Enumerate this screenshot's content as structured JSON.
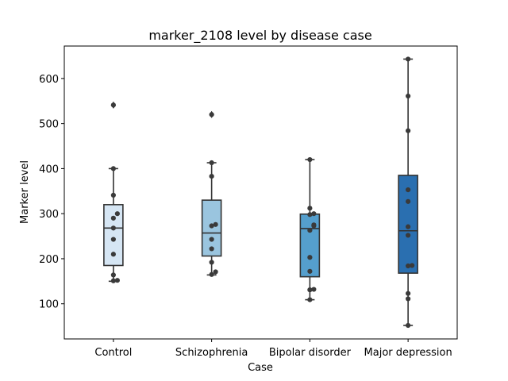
{
  "chart_data": {
    "type": "box",
    "title": "marker_2108 level by disease case",
    "xlabel": "Case",
    "ylabel": "Marker level",
    "categories": [
      "Control",
      "Schizophrenia",
      "Bipolar disorder",
      "Major depression"
    ],
    "ylim": [
      22,
      672
    ],
    "yticks": [
      100,
      200,
      300,
      400,
      500,
      600
    ],
    "grid": false,
    "colors": [
      "#d6e6f4",
      "#9ac5df",
      "#559fcd",
      "#2a6fb0"
    ],
    "point_color": "#3a3a3a",
    "line_color": "#333333",
    "boxes": [
      {
        "q1": 185,
        "median": 268,
        "q3": 320,
        "whisker_low": 150,
        "whisker_high": 400,
        "outliers": [
          541
        ]
      },
      {
        "q1": 206,
        "median": 257,
        "q3": 330,
        "whisker_low": 164,
        "whisker_high": 413,
        "outliers": [
          520
        ]
      },
      {
        "q1": 160,
        "median": 267,
        "q3": 299,
        "whisker_low": 109,
        "whisker_high": 420,
        "outliers": []
      },
      {
        "q1": 168,
        "median": 262,
        "q3": 385,
        "whisker_low": 52,
        "whisker_high": 643,
        "outliers": []
      }
    ],
    "points": [
      [
        541,
        400,
        341,
        300,
        290,
        268,
        243,
        210,
        164,
        152,
        151
      ],
      [
        520,
        413,
        383,
        276,
        273,
        243,
        222,
        192,
        171,
        165
      ],
      [
        420,
        312,
        300,
        298,
        275,
        273,
        263,
        203,
        172,
        132,
        131,
        109
      ],
      [
        643,
        561,
        484,
        353,
        327,
        271,
        252,
        185,
        184,
        123,
        111,
        52
      ]
    ]
  }
}
